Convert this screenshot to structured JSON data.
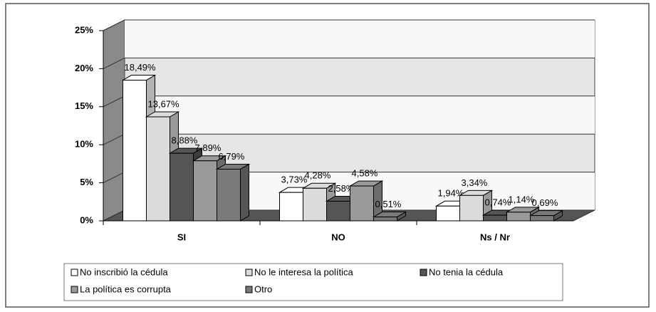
{
  "chart_data": {
    "type": "bar3d",
    "categories": [
      "SI",
      "NO",
      "Ns / Nr"
    ],
    "series": [
      {
        "name": "No inscribió la cédula",
        "color": "#ffffff",
        "values": [
          18.49,
          3.73,
          1.94
        ],
        "value_labels": [
          "18,49%",
          "3,73%",
          "1,94%"
        ]
      },
      {
        "name": "No le interesa la política",
        "color": "#dcdcdc",
        "values": [
          13.67,
          4.28,
          3.34
        ],
        "value_labels": [
          "13,67%",
          "4,28%",
          "3,34%"
        ]
      },
      {
        "name": "No tenia la cédula",
        "color": "#555555",
        "values": [
          8.88,
          2.58,
          0.74
        ],
        "value_labels": [
          "8,88%",
          "2,58%",
          "0,74%"
        ]
      },
      {
        "name": "La política es corrupta",
        "color": "#9a9a9a",
        "values": [
          7.89,
          4.58,
          1.14
        ],
        "value_labels": [
          "7,89%",
          "4,58%",
          "1,14%"
        ]
      },
      {
        "name": "Otro",
        "color": "#7a7a7a",
        "values": [
          6.79,
          0.51,
          0.69
        ],
        "value_labels": [
          "6,79%",
          "0,51%",
          "0,69%"
        ]
      }
    ],
    "ylim": [
      0,
      25
    ],
    "yticks": [
      {
        "value": 0,
        "label": "0%"
      },
      {
        "value": 5,
        "label": "5%"
      },
      {
        "value": 10,
        "label": "10%"
      },
      {
        "value": 15,
        "label": "15%"
      },
      {
        "value": 20,
        "label": "20%"
      },
      {
        "value": 25,
        "label": "25%"
      }
    ],
    "grid": true,
    "legend": "bottom"
  }
}
